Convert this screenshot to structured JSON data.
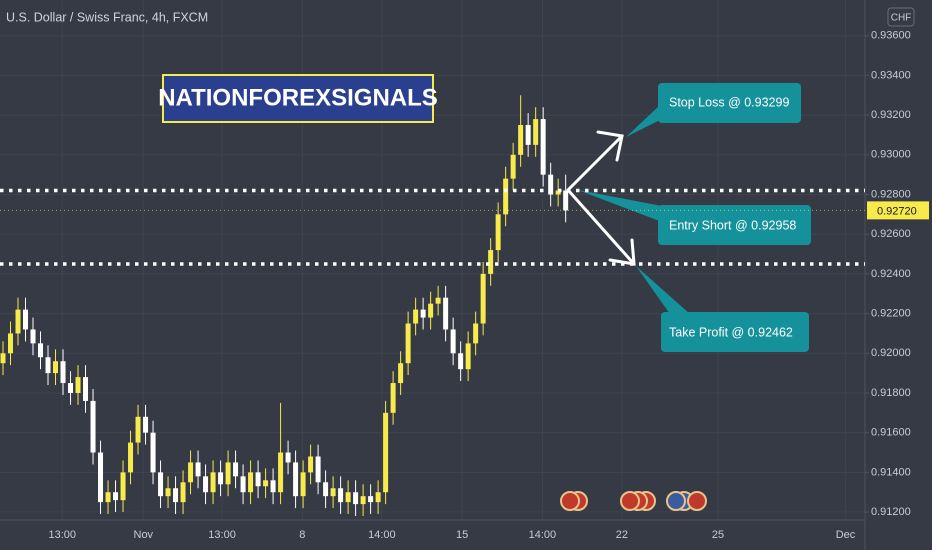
{
  "chart_data": {
    "type": "candlestick",
    "title": "U.S. Dollar / Swiss Franc, 4h, FXCM",
    "currency": "CHF",
    "banner": "NATIONFOREXSIGNALS",
    "open": [
      0.9195,
      0.92,
      0.921,
      0.9222,
      0.9212,
      0.9205,
      0.9198,
      0.919,
      0.9196,
      0.9185,
      0.918,
      0.9188,
      0.9176,
      0.915,
      0.9125,
      0.913,
      0.9126,
      0.914,
      0.9155,
      0.9168,
      0.916,
      0.914,
      0.9128,
      0.9132,
      0.9125,
      0.9135,
      0.9145,
      0.9138,
      0.913,
      0.914,
      0.9134,
      0.9145,
      0.9138,
      0.913,
      0.914,
      0.9133,
      0.9136,
      0.913,
      0.915,
      0.9145,
      0.9128,
      0.914,
      0.9148,
      0.9135,
      0.9128,
      0.9132,
      0.9125,
      0.913,
      0.9124,
      0.9128,
      0.9125,
      0.913,
      0.917,
      0.9185,
      0.9195,
      0.9215,
      0.9222,
      0.9218,
      0.9225,
      0.9228,
      0.9212,
      0.92,
      0.9192,
      0.9205,
      0.9215,
      0.924,
      0.9252,
      0.927,
      0.9288,
      0.93,
      0.9315,
      0.9305,
      0.9318,
      0.929,
      0.928,
      0.9282
    ],
    "high": [
      0.9206,
      0.9216,
      0.9228,
      0.9228,
      0.9218,
      0.9211,
      0.9204,
      0.9202,
      0.9202,
      0.9191,
      0.9194,
      0.9194,
      0.9182,
      0.9156,
      0.9136,
      0.9136,
      0.9146,
      0.9161,
      0.9174,
      0.9174,
      0.9166,
      0.9146,
      0.9138,
      0.9138,
      0.9141,
      0.9151,
      0.9151,
      0.9144,
      0.9146,
      0.9146,
      0.9151,
      0.9151,
      0.9144,
      0.9146,
      0.9146,
      0.9142,
      0.9142,
      0.9175,
      0.9156,
      0.9151,
      0.9146,
      0.9154,
      0.9154,
      0.9141,
      0.9138,
      0.9138,
      0.9136,
      0.9136,
      0.9134,
      0.9134,
      0.9136,
      0.9176,
      0.9191,
      0.9201,
      0.9221,
      0.9228,
      0.9228,
      0.9231,
      0.9234,
      0.9234,
      0.9218,
      0.9206,
      0.9211,
      0.9221,
      0.9246,
      0.9258,
      0.9276,
      0.9294,
      0.9306,
      0.933,
      0.9321,
      0.9324,
      0.9324,
      0.9296,
      0.9288,
      0.929
    ],
    "low": [
      0.9189,
      0.9194,
      0.9204,
      0.9206,
      0.9199,
      0.9192,
      0.9184,
      0.9184,
      0.9179,
      0.9174,
      0.9174,
      0.917,
      0.9144,
      0.9119,
      0.9119,
      0.912,
      0.912,
      0.9134,
      0.9149,
      0.9154,
      0.9134,
      0.9122,
      0.9122,
      0.9119,
      0.9119,
      0.9129,
      0.9132,
      0.9124,
      0.9124,
      0.9128,
      0.9128,
      0.9132,
      0.9124,
      0.9124,
      0.9127,
      0.9127,
      0.9124,
      0.9124,
      0.9139,
      0.9122,
      0.9122,
      0.9134,
      0.9129,
      0.9122,
      0.9122,
      0.9119,
      0.9119,
      0.9118,
      0.9118,
      0.9119,
      0.9119,
      0.9124,
      0.9164,
      0.9179,
      0.9189,
      0.9209,
      0.9212,
      0.9212,
      0.9219,
      0.9206,
      0.9194,
      0.9186,
      0.9186,
      0.9199,
      0.9209,
      0.9234,
      0.9246,
      0.9264,
      0.9282,
      0.9294,
      0.9299,
      0.9299,
      0.9284,
      0.9274,
      0.9274,
      0.9266
    ],
    "close": [
      0.92,
      0.921,
      0.9222,
      0.9212,
      0.9205,
      0.9198,
      0.919,
      0.9196,
      0.9185,
      0.918,
      0.9188,
      0.9176,
      0.915,
      0.9125,
      0.913,
      0.9126,
      0.914,
      0.9155,
      0.9168,
      0.916,
      0.914,
      0.9128,
      0.9132,
      0.9125,
      0.9135,
      0.9145,
      0.9138,
      0.913,
      0.914,
      0.9134,
      0.9145,
      0.9138,
      0.913,
      0.914,
      0.9133,
      0.9136,
      0.913,
      0.915,
      0.9145,
      0.9128,
      0.914,
      0.9148,
      0.9135,
      0.9128,
      0.9132,
      0.9125,
      0.913,
      0.9124,
      0.9128,
      0.9125,
      0.913,
      0.917,
      0.9185,
      0.9195,
      0.9215,
      0.9222,
      0.9218,
      0.9225,
      0.9228,
      0.9212,
      0.92,
      0.9192,
      0.9205,
      0.9215,
      0.924,
      0.9252,
      0.927,
      0.9288,
      0.93,
      0.9315,
      0.9305,
      0.9318,
      0.929,
      0.928,
      0.9282,
      0.9272
    ],
    "up_color": "#f7ea4b",
    "down_color": "#ffffff",
    "ylim": [
      0.9116,
      0.9378
    ],
    "yticks": [
      {
        "value": 0.936,
        "label": "0.93600"
      },
      {
        "value": 0.934,
        "label": "0.93400"
      },
      {
        "value": 0.932,
        "label": "0.93200"
      },
      {
        "value": 0.93,
        "label": "0.93000"
      },
      {
        "value": 0.928,
        "label": "0.92800"
      },
      {
        "value": 0.926,
        "label": "0.92600"
      },
      {
        "value": 0.924,
        "label": "0.92400"
      },
      {
        "value": 0.922,
        "label": "0.92200"
      },
      {
        "value": 0.92,
        "label": "0.92000"
      },
      {
        "value": 0.918,
        "label": "0.91800"
      },
      {
        "value": 0.916,
        "label": "0.91600"
      },
      {
        "value": 0.914,
        "label": "0.91400"
      },
      {
        "value": 0.912,
        "label": "0.91200"
      }
    ],
    "xlim": [
      -0.4,
      114.9
    ],
    "xticks": [
      {
        "value": 7.9,
        "label": "13:00"
      },
      {
        "value": 18.7,
        "label": "Nov"
      },
      {
        "value": 29.2,
        "label": "13:00"
      },
      {
        "value": 39.9,
        "label": "8"
      },
      {
        "value": 50.5,
        "label": "14:00"
      },
      {
        "value": 61.2,
        "label": "15"
      },
      {
        "value": 71.9,
        "label": "14:00"
      },
      {
        "value": 82.5,
        "label": "22"
      },
      {
        "value": 95.3,
        "label": "25"
      },
      {
        "value": 112.3,
        "label": "Dec"
      }
    ],
    "grid": true,
    "levels": [
      0.9282,
      0.9245
    ],
    "last_price": 0.9272,
    "last_price_label": "0.92720",
    "annotations": [
      "Stop Loss @ 0.93299",
      "Entry Short @ 0.92958",
      "Take Profit @ 0.92462"
    ]
  }
}
